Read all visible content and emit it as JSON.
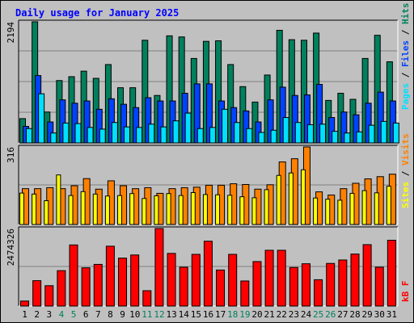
{
  "chart_data": [
    {
      "type": "bar",
      "title": "Daily usage for January 2025",
      "max_label": "2194",
      "ylim": [
        0,
        2194
      ],
      "categories": [
        "1",
        "2",
        "3",
        "4",
        "5",
        "6",
        "7",
        "8",
        "9",
        "10",
        "11",
        "12",
        "13",
        "14",
        "15",
        "16",
        "17",
        "18",
        "19",
        "20",
        "21",
        "22",
        "23",
        "24",
        "25",
        "26",
        "27",
        "28",
        "29",
        "30",
        "31"
      ],
      "weekend_days": [
        "4",
        "5",
        "11",
        "12",
        "18",
        "19",
        "25",
        "26"
      ],
      "series": [
        {
          "name": "Hits",
          "color": "#00805c",
          "values": [
            440,
            2194,
            560,
            1130,
            1200,
            1300,
            1170,
            1420,
            1000,
            1000,
            1860,
            860,
            1940,
            1920,
            1530,
            1840,
            1850,
            1420,
            1020,
            740,
            1230,
            2040,
            1870,
            1860,
            1990,
            770,
            900,
            790,
            1530,
            1950,
            1470
          ]
        },
        {
          "name": "Files",
          "color": "#0042ff",
          "values": [
            300,
            1220,
            380,
            780,
            720,
            760,
            610,
            800,
            700,
            640,
            820,
            760,
            760,
            900,
            1070,
            1070,
            760,
            640,
            580,
            380,
            780,
            1010,
            860,
            870,
            1060,
            460,
            560,
            510,
            720,
            920,
            760
          ]
        },
        {
          "name": "Pages",
          "color": "#00e0ff",
          "values": [
            260,
            890,
            180,
            360,
            350,
            280,
            250,
            370,
            290,
            280,
            340,
            290,
            400,
            540,
            260,
            280,
            610,
            370,
            260,
            190,
            230,
            460,
            370,
            330,
            340,
            210,
            180,
            200,
            320,
            390,
            360
          ]
        }
      ],
      "legend": [
        "Pages",
        "Files",
        "Hits"
      ],
      "legend_placement": "right-vertical"
    },
    {
      "type": "bar",
      "max_label": "316",
      "ylim": [
        0,
        316
      ],
      "categories": [
        "1",
        "2",
        "3",
        "4",
        "5",
        "6",
        "7",
        "8",
        "9",
        "10",
        "11",
        "12",
        "13",
        "14",
        "15",
        "16",
        "17",
        "18",
        "19",
        "20",
        "21",
        "22",
        "23",
        "24",
        "25",
        "26",
        "27",
        "28",
        "29",
        "30",
        "31"
      ],
      "series": [
        {
          "name": "Visits",
          "color": "#ff8000",
          "values": [
            146,
            146,
            150,
            146,
            158,
            187,
            144,
            178,
            158,
            146,
            150,
            127,
            146,
            150,
            152,
            160,
            160,
            166,
            163,
            144,
            162,
            255,
            268,
            316,
            133,
            120,
            146,
            168,
            186,
            195,
            205
          ]
        },
        {
          "name": "Sites",
          "color": "#ffff00",
          "values": [
            128,
            124,
            97,
            202,
            118,
            134,
            124,
            116,
            118,
            126,
            106,
            117,
            126,
            118,
            130,
            122,
            121,
            119,
            113,
            109,
            142,
            200,
            210,
            223,
            108,
            103,
            99,
            127,
            138,
            129,
            156
          ]
        }
      ],
      "legend": [
        "Sites",
        "Visits"
      ],
      "legend_placement": "right-vertical"
    },
    {
      "type": "bar",
      "max_label": "2474326",
      "ylim": [
        0,
        2474326
      ],
      "categories": [
        "1",
        "2",
        "3",
        "4",
        "5",
        "6",
        "7",
        "8",
        "9",
        "10",
        "11",
        "12",
        "13",
        "14",
        "15",
        "16",
        "17",
        "18",
        "19",
        "20",
        "21",
        "22",
        "23",
        "24",
        "25",
        "26",
        "27",
        "28",
        "29",
        "30",
        "31"
      ],
      "series": [
        {
          "name": "kB F",
          "color": "#ff0000",
          "values": [
            160000,
            810000,
            650000,
            1130000,
            1950000,
            1220000,
            1330000,
            1910000,
            1530000,
            1630000,
            490000,
            2474326,
            1680000,
            1240000,
            1650000,
            2070000,
            1150000,
            1650000,
            800000,
            1420000,
            1780000,
            1780000,
            1230000,
            1350000,
            840000,
            1360000,
            1470000,
            1660000,
            1960000,
            1240000,
            2100000
          ]
        }
      ],
      "legend": [
        "kB F"
      ],
      "legend_placement": "right-vertical"
    }
  ]
}
